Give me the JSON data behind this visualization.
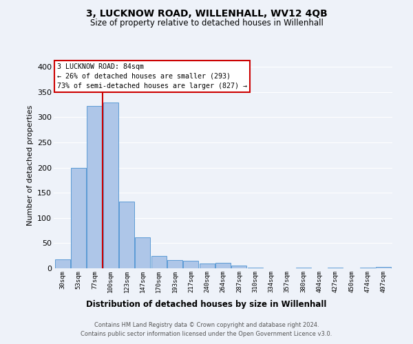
{
  "title": "3, LUCKNOW ROAD, WILLENHALL, WV12 4QB",
  "subtitle": "Size of property relative to detached houses in Willenhall",
  "xlabel": "Distribution of detached houses by size in Willenhall",
  "ylabel": "Number of detached properties",
  "bar_labels": [
    "30sqm",
    "53sqm",
    "77sqm",
    "100sqm",
    "123sqm",
    "147sqm",
    "170sqm",
    "193sqm",
    "217sqm",
    "240sqm",
    "264sqm",
    "287sqm",
    "310sqm",
    "334sqm",
    "357sqm",
    "380sqm",
    "404sqm",
    "427sqm",
    "450sqm",
    "474sqm",
    "497sqm"
  ],
  "bar_values": [
    18,
    200,
    323,
    330,
    133,
    62,
    25,
    16,
    15,
    9,
    11,
    5,
    1,
    0,
    0,
    1,
    0,
    2,
    0,
    2,
    3
  ],
  "bar_color": "#aec6e8",
  "bar_edge_color": "#5b9bd5",
  "vline_color": "#cc0000",
  "vline_x": 2.5,
  "annotation_title": "3 LUCKNOW ROAD: 84sqm",
  "annotation_line1": "← 26% of detached houses are smaller (293)",
  "annotation_line2": "73% of semi-detached houses are larger (827) →",
  "annotation_box_color": "#ffffff",
  "annotation_box_edge_color": "#cc0000",
  "ylim": [
    0,
    410
  ],
  "yticks": [
    0,
    50,
    100,
    150,
    200,
    250,
    300,
    350,
    400
  ],
  "background_color": "#eef2f9",
  "grid_color": "#ffffff",
  "footer_line1": "Contains HM Land Registry data © Crown copyright and database right 2024.",
  "footer_line2": "Contains public sector information licensed under the Open Government Licence v3.0."
}
